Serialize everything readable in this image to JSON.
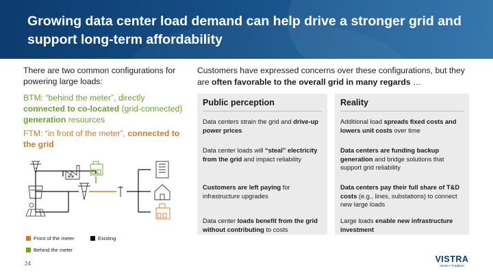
{
  "title": "Growing data center load demand can help drive a stronger grid and support long-term affordability",
  "left": {
    "intro": "There are two common configurations for powering large loads:",
    "btm": {
      "prefix": "BTM: “behind the meter”, directly ",
      "bold1": "connected to co-located",
      "mid": " (grid-connected) ",
      "bold2": "generation",
      "suffix": " resources"
    },
    "ftm": {
      "prefix": "FTM: “in front of the meter”, ",
      "bold": "connected to the grid"
    }
  },
  "right_intro": {
    "text": "Customers have expressed concerns over these configurations, but they are ",
    "bold": "often favorable to the overall grid in many regards",
    "suffix": " …"
  },
  "perception": {
    "heading": "Public perception",
    "items": [
      {
        "a": "Data centers strain the grid and ",
        "b": "drive-up power prices",
        "c": ""
      },
      {
        "a": "Data center loads will ",
        "b": "“steal” electricity from the grid",
        "c": " and impact reliability"
      },
      {
        "a": "",
        "b": "Customers are left paying",
        "c": " for infrastructure upgrades"
      },
      {
        "a": "Data center ",
        "b": "loads benefit from the grid without contributing",
        "c": " to costs"
      }
    ]
  },
  "reality": {
    "heading": "Reality",
    "items": [
      {
        "a": "Additional load ",
        "b": "spreads fixed costs and lowers unit costs",
        "c": " over time"
      },
      {
        "a": "",
        "b": "Data centers are funding backup generation",
        "c": " and bridge solutions that support grid reliability"
      },
      {
        "a": "",
        "b": "Data centers pay their full share of T&D costs",
        "c": " (e.g., lines, substations) to connect new large loads"
      },
      {
        "a": "Large loads ",
        "b": "enable new infrastructure investment",
        "c": ""
      }
    ]
  },
  "legend": {
    "front": "Front of the meter",
    "existing": "Existing",
    "behind": "Behind the meter"
  },
  "colors": {
    "header": "#154f86",
    "btm_green": "#6aa22c",
    "ftm_orange": "#d4782a",
    "box_bg": "#ebebeb",
    "existing_black": "#111111"
  },
  "icons": [
    "transmission-tower-icon",
    "power-plant-icon",
    "factory-icon",
    "data-center-icon",
    "substation-tower-icon",
    "utility-pole-icon",
    "office-building-icon",
    "house-icon",
    "solar-panel-icon",
    "cooling-tower-icon"
  ],
  "page_number": "24",
  "logo": {
    "word": "VISTRA",
    "tagline": "Vision • Tradition"
  }
}
